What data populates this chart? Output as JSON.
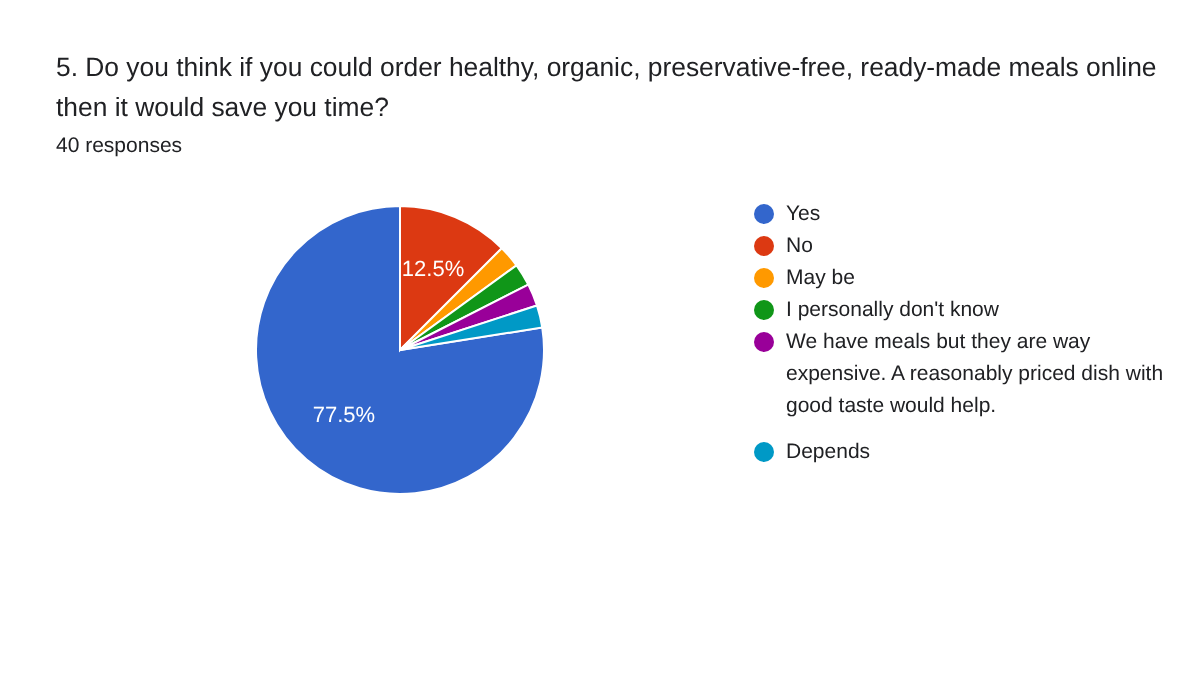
{
  "chart_data": {
    "type": "pie",
    "title": "5. Do you think if you could order healthy, organic, preservative-free, ready-made meals online then it would save you time?",
    "subtitle": "40 responses",
    "categories": [
      "Yes",
      "No",
      "May be",
      "I personally don't know",
      "We have meals but they are way expensive. A reasonably priced dish with good taste would help.",
      "Depends"
    ],
    "values": [
      77.5,
      12.5,
      2.5,
      2.5,
      2.5,
      2.5
    ],
    "colors": [
      "#3366cc",
      "#dc3912",
      "#ff9900",
      "#109618",
      "#990099",
      "#0099c6"
    ],
    "value_labels": [
      "77.5%",
      "12.5%",
      null,
      null,
      null,
      null
    ],
    "legend": "right"
  }
}
